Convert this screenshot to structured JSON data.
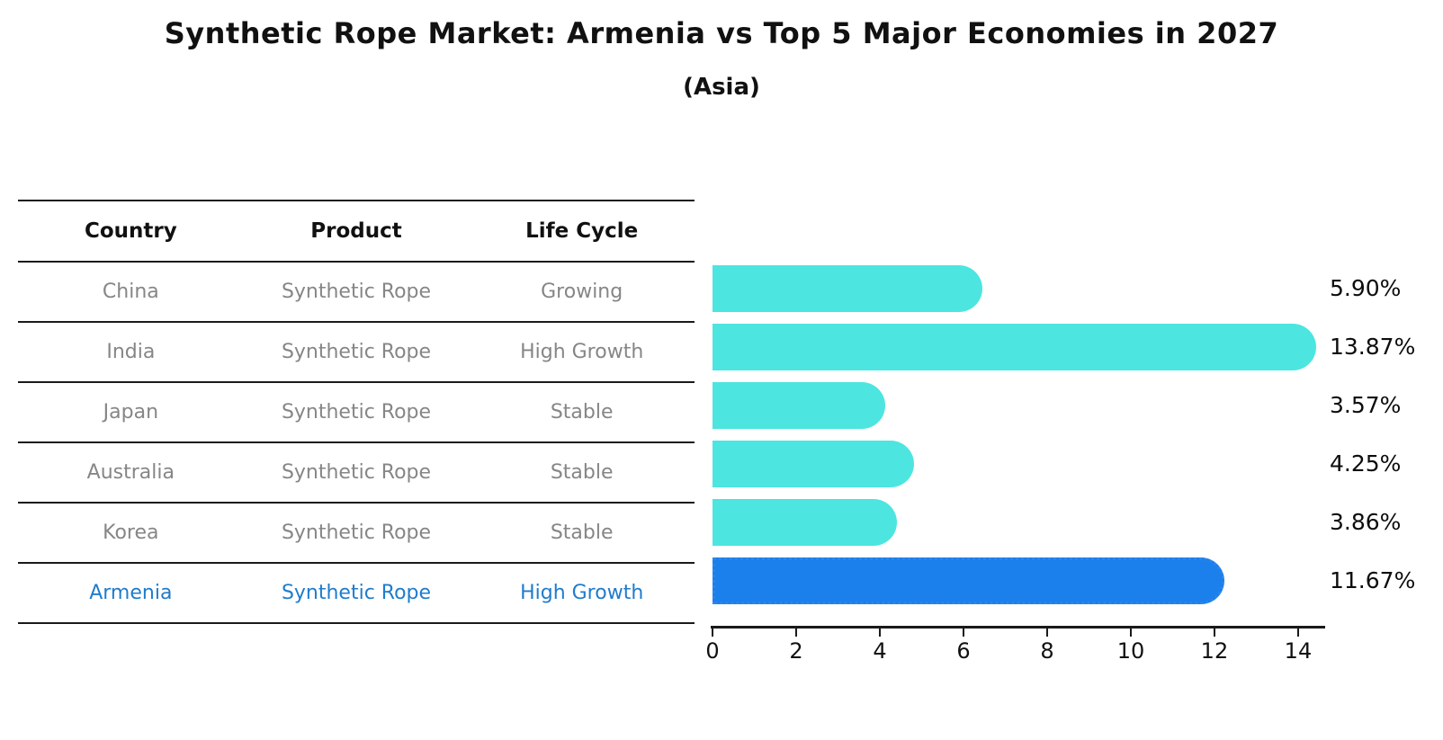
{
  "title": "Synthetic Rope Market: Armenia vs Top 5 Major Economies in 2027",
  "subtitle": "(Asia)",
  "table": {
    "headers": [
      "Country",
      "Product",
      "Life Cycle"
    ],
    "rows": [
      {
        "country": "China",
        "product": "Synthetic Rope",
        "life_cycle": "Growing"
      },
      {
        "country": "India",
        "product": "Synthetic Rope",
        "life_cycle": "High Growth"
      },
      {
        "country": "Japan",
        "product": "Synthetic Rope",
        "life_cycle": "Stable"
      },
      {
        "country": "Australia",
        "product": "Synthetic Rope",
        "life_cycle": "Stable"
      },
      {
        "country": "Korea",
        "product": "Synthetic Rope",
        "life_cycle": "Stable"
      },
      {
        "country": "Armenia",
        "product": "Synthetic Rope",
        "life_cycle": "High Growth"
      }
    ],
    "highlight_row": 5
  },
  "chart_data": {
    "type": "bar",
    "orientation": "horizontal",
    "title": "Synthetic Rope Market: Armenia vs Top 5 Major Economies in 2027",
    "subtitle": "(Asia)",
    "categories": [
      "China",
      "India",
      "Japan",
      "Australia",
      "Korea",
      "Armenia"
    ],
    "values": [
      5.9,
      13.87,
      3.57,
      4.25,
      3.86,
      11.67
    ],
    "value_labels": [
      "5.90%",
      "13.87%",
      "3.57%",
      "4.25%",
      "3.86%",
      "11.67%"
    ],
    "x_ticks": [
      0,
      2,
      4,
      6,
      8,
      10,
      12,
      14
    ],
    "xlim": [
      0,
      14.56
    ],
    "grid": false,
    "legend": false,
    "highlight_index": 5,
    "colors": {
      "bar": "#4DE5E0",
      "highlight_bar": "#1B7FEC",
      "highlight_bar_edge": "#2B86E8",
      "highlight_text": "#1F7CCC",
      "row_text": "#868686",
      "axis": "#1A1A1A"
    }
  }
}
